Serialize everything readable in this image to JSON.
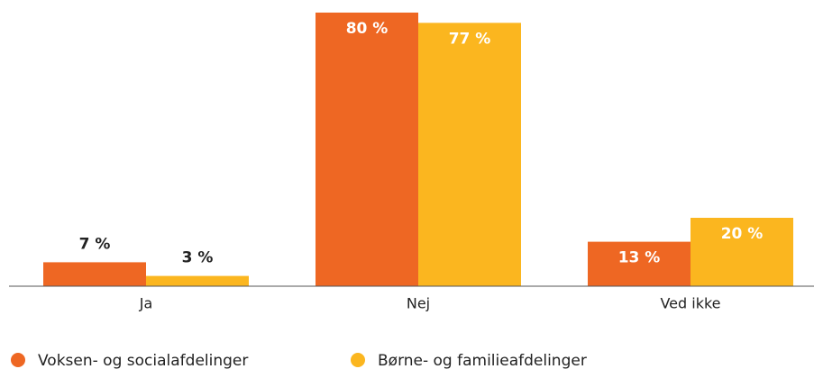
{
  "chart_data": {
    "type": "bar",
    "categories": [
      "Ja",
      "Nej",
      "Ved ikke"
    ],
    "series": [
      {
        "name": "Voksen- og socialafdelinger",
        "color": "#ee6723",
        "values": [
          7,
          80,
          13
        ],
        "value_labels": [
          "7 %",
          "80 %",
          "13 %"
        ]
      },
      {
        "name": "Børne- og familieafdelinger",
        "color": "#fbb61f",
        "values": [
          3,
          77,
          20
        ],
        "value_labels": [
          "3 %",
          "77 %",
          "20 %"
        ]
      }
    ]
  }
}
